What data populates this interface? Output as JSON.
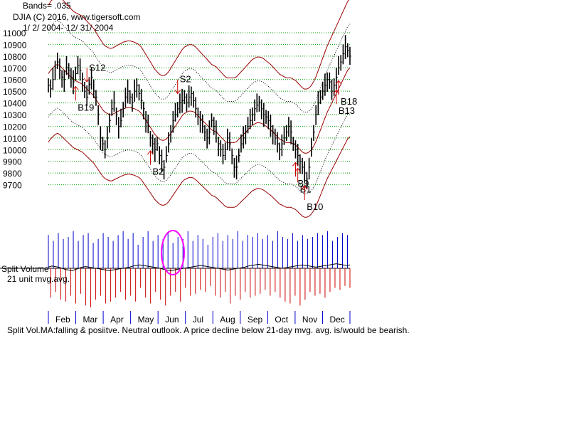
{
  "header": {
    "bands": "Bands= .035",
    "title": "DJIA   (C) 2016, www.tigersoft.com",
    "range": "1/ 2/ 2004- 12/ 31/ 2004"
  },
  "chart_data": [
    {
      "type": "line",
      "name": "price-panel",
      "ylim": [
        9600,
        11000
      ],
      "yticks": [
        9700,
        9800,
        9900,
        10000,
        10100,
        10200,
        10300,
        10400,
        10500,
        10600,
        10700,
        10800,
        10900,
        11000
      ],
      "grid": true,
      "close": [
        10550,
        10520,
        10600,
        10700,
        10750,
        10680,
        10620,
        10600,
        10700,
        10680,
        10620,
        10580,
        10650,
        10720,
        10680,
        10600,
        10500,
        10450,
        10560,
        10620,
        10500,
        10450,
        10300,
        10100,
        10050,
        10000,
        10100,
        10250,
        10350,
        10400,
        10300,
        10200,
        10250,
        10350,
        10450,
        10500,
        10450,
        10400,
        10500,
        10550,
        10480,
        10420,
        10350,
        10250,
        10200,
        10100,
        10050,
        10000,
        10050,
        9950,
        9900,
        9850,
        9950,
        10050,
        10150,
        10250,
        10300,
        10350,
        10400,
        10420,
        10450,
        10400,
        10450,
        10480,
        10420,
        10350,
        10300,
        10250,
        10200,
        10150,
        10100,
        10150,
        10250,
        10200,
        10150,
        10050,
        10000,
        9950,
        10000,
        10100,
        10050,
        9950,
        9850,
        9850,
        9950,
        10050,
        10100,
        10150,
        10200,
        10250,
        10300,
        10350,
        10380,
        10400,
        10350,
        10300,
        10280,
        10250,
        10200,
        10150,
        10100,
        10050,
        10000,
        10050,
        10100,
        10150,
        10200,
        10150,
        10050,
        10000,
        9950,
        9900,
        9850,
        9800,
        9750,
        9850,
        10000,
        10150,
        10300,
        10400,
        10450,
        10500,
        10550,
        10600,
        10580,
        10500,
        10550,
        10620,
        10700,
        10750,
        10820,
        10880,
        10850,
        10800
      ],
      "mid_band": [
        10650,
        10680,
        10700,
        10720,
        10730,
        10720,
        10700,
        10680,
        10660,
        10640,
        10620,
        10600,
        10590,
        10580,
        10570,
        10560,
        10540,
        10520,
        10500,
        10480,
        10460,
        10430,
        10400,
        10370,
        10340,
        10320,
        10310,
        10300,
        10300,
        10310,
        10320,
        10330,
        10340,
        10350,
        10355,
        10360,
        10360,
        10355,
        10350,
        10340,
        10330,
        10310,
        10280,
        10250,
        10220,
        10190,
        10160,
        10130,
        10110,
        10090,
        10080,
        10080,
        10090,
        10110,
        10140,
        10170,
        10200,
        10230,
        10260,
        10290,
        10310,
        10320,
        10330,
        10330,
        10325,
        10310,
        10290,
        10270,
        10250,
        10230,
        10210,
        10190,
        10170,
        10160,
        10150,
        10130,
        10110,
        10090,
        10070,
        10060,
        10060,
        10060,
        10060,
        10070,
        10090,
        10110,
        10130,
        10150,
        10170,
        10190,
        10210,
        10220,
        10230,
        10230,
        10225,
        10215,
        10200,
        10185,
        10170,
        10150,
        10130,
        10110,
        10090,
        10080,
        10070,
        10060,
        10060,
        10060,
        10050,
        10040,
        10020,
        10000,
        9980,
        9970,
        9970,
        9980,
        10000,
        10030,
        10070,
        10120,
        10170,
        10220,
        10270,
        10320,
        10360,
        10400,
        10440,
        10480,
        10520,
        10560,
        10600,
        10640,
        10680,
        10700
      ]
    },
    {
      "type": "bar",
      "name": "split-volume-panel",
      "ylim": [
        -1,
        1
      ],
      "values": [
        0.85,
        -0.75,
        0.7,
        -0.6,
        0.9,
        -0.8,
        0.75,
        -0.85,
        0.8,
        -0.7,
        0.95,
        -0.9,
        0.7,
        -0.65,
        0.85,
        -0.95,
        0.9,
        -1.0,
        0.65,
        -0.8,
        0.75,
        -0.7,
        0.9,
        -0.9,
        0.8,
        -0.85,
        0.7,
        -0.75,
        0.85,
        -0.6,
        0.95,
        -0.8,
        0.75,
        -0.7,
        0.9,
        -0.85,
        0.6,
        -0.5,
        0.8,
        -0.75,
        0.95,
        -0.9,
        0.7,
        -0.6,
        0.85,
        -0.8,
        0.75,
        -0.95,
        0.9,
        -0.7,
        0.65,
        -0.6,
        0.8,
        -0.85,
        0.75,
        -0.5,
        0.95,
        -0.7,
        0.7,
        -0.65,
        0.85,
        -0.55,
        0.75,
        -0.6,
        0.6,
        -0.45,
        0.8,
        -0.7,
        0.9,
        -0.75,
        0.7,
        -0.6,
        0.85,
        -0.9,
        0.75,
        -0.7,
        0.95,
        -0.8,
        0.7,
        -0.6,
        0.85,
        -0.75,
        0.8,
        -0.7,
        0.9,
        -0.65,
        0.75,
        -0.55,
        0.85,
        -0.7,
        0.7,
        -0.6,
        0.95,
        -0.75,
        0.8,
        -0.85,
        0.75,
        -0.9,
        0.9,
        -0.7,
        0.7,
        -0.95,
        0.85,
        -0.8,
        0.75,
        -0.6,
        0.8,
        -0.7,
        0.9,
        -0.65,
        0.85,
        -0.75,
        0.95,
        -0.6,
        0.7,
        -0.5,
        0.8,
        -0.55,
        0.9,
        -0.45,
        0.85,
        -0.5
      ],
      "ma": [
        0.02,
        0.04,
        0.03,
        0.02,
        0.0,
        -0.02,
        -0.03,
        -0.04,
        -0.02,
        0.0,
        0.02,
        0.03,
        0.02,
        0.01,
        0.0,
        -0.01,
        -0.02,
        -0.03,
        -0.04,
        -0.03,
        -0.02,
        -0.01,
        0.0,
        0.01,
        0.02,
        0.04,
        0.05,
        0.06,
        0.05,
        0.04,
        0.03,
        0.02,
        0.01,
        0.0,
        -0.02,
        -0.03,
        -0.04,
        -0.03,
        -0.02,
        -0.01,
        0.0,
        0.01,
        0.02,
        0.03,
        0.04,
        0.05,
        0.04,
        0.03,
        0.02,
        0.01,
        0.0,
        -0.01,
        -0.02,
        -0.03,
        -0.02,
        -0.01,
        0.0,
        0.01,
        0.02,
        0.04,
        0.05,
        0.06,
        0.07,
        0.06,
        0.05,
        0.04,
        0.03,
        0.02,
        0.01,
        0.0,
        0.01,
        0.02,
        0.03,
        0.04,
        0.05,
        0.06,
        0.05,
        0.04,
        0.03,
        0.02,
        0.03,
        0.04,
        0.05,
        0.06,
        0.07,
        0.08,
        0.07,
        0.06,
        0.05,
        0.06
      ],
      "title": "Split Volume",
      "subtitle": "21 unit mvg.avg."
    }
  ],
  "x_axis": {
    "months": [
      "Feb",
      "Mar",
      "Apr",
      "May",
      "Jun",
      "Jul",
      "Aug",
      "Sep",
      "Oct",
      "Nov",
      "Dec"
    ]
  },
  "signals": [
    {
      "label": "S12",
      "type": "sell",
      "x_index": 17
    },
    {
      "label": "S2",
      "type": "sell",
      "x_index": 57
    },
    {
      "label": "B19",
      "type": "buy",
      "x_index": 12
    },
    {
      "label": "B2",
      "type": "buy",
      "x_index": 45
    },
    {
      "label": "B9",
      "type": "buy",
      "x_index": 109
    },
    {
      "label": "B1",
      "type": "buy",
      "x_index": 110
    },
    {
      "label": "B10",
      "type": "buy",
      "x_index": 113
    },
    {
      "label": "B18",
      "type": "buy",
      "x_index": 128
    },
    {
      "label": "B13",
      "type": "buy",
      "x_index": 127
    }
  ],
  "footer": {
    "note": "Split Vol.MA:falling & posiitve. Neutral outlook. A price decline below 21-day mvg. avg. is/would be bearish."
  },
  "colors": {
    "band": "#990000",
    "dotted_band": "#000000",
    "price_bar": "#000000",
    "grid": "#009900",
    "volume_up": "#0000cc",
    "volume_down": "#cc0000",
    "signal_arrow_buy": "#cc0000",
    "signal_arrow_sell": "#cc0000",
    "highlight_ring": "#ff00ff"
  }
}
